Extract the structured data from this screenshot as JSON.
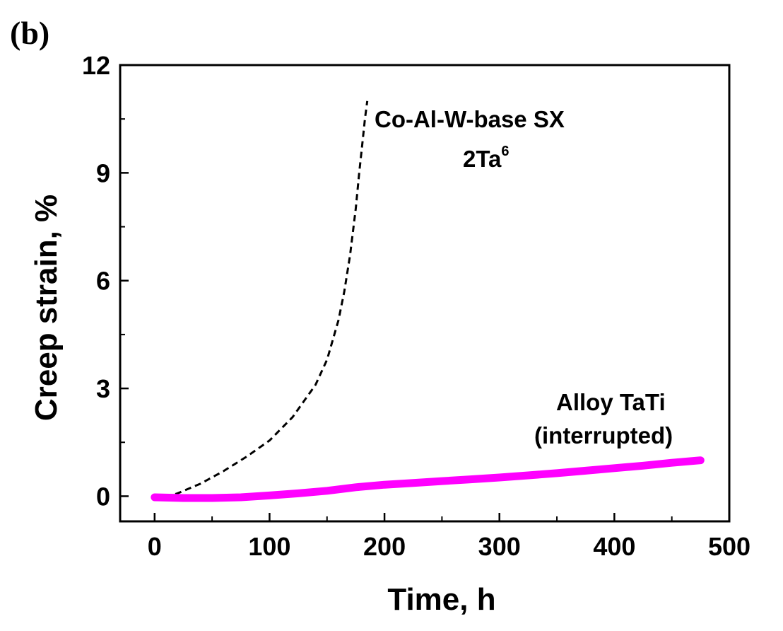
{
  "panel_label": "(b)",
  "chart_data": {
    "type": "line",
    "xlabel": "Time, h",
    "ylabel": "Creep strain, %",
    "xlim": [
      -30,
      500
    ],
    "ylim": [
      -0.7,
      12
    ],
    "x_ticks": [
      0,
      100,
      200,
      300,
      400,
      500
    ],
    "y_ticks": [
      0,
      3,
      6,
      9,
      12
    ],
    "grid": false,
    "series": [
      {
        "name": "Co-Al-W-base SX 2Ta",
        "reference_superscript": "6",
        "style": "dashed",
        "color": "#000000",
        "x": [
          0,
          10,
          20,
          40,
          60,
          80,
          100,
          120,
          140,
          150,
          160,
          165,
          170,
          175,
          178,
          181,
          183,
          185
        ],
        "y": [
          -0.05,
          -0.02,
          0.08,
          0.35,
          0.7,
          1.1,
          1.55,
          2.2,
          3.1,
          3.8,
          4.9,
          5.7,
          6.7,
          8.0,
          9.0,
          9.9,
          10.5,
          11.0
        ]
      },
      {
        "name": "Alloy TaTi (interrupted)",
        "style": "solid",
        "color": "#ff00ff",
        "x": [
          0,
          25,
          50,
          75,
          100,
          125,
          150,
          175,
          200,
          225,
          250,
          275,
          300,
          325,
          350,
          375,
          400,
          425,
          450,
          475
        ],
        "y": [
          -0.03,
          -0.05,
          -0.05,
          -0.03,
          0.02,
          0.08,
          0.15,
          0.25,
          0.32,
          0.37,
          0.42,
          0.47,
          0.52,
          0.58,
          0.64,
          0.71,
          0.78,
          0.85,
          0.93,
          1.0
        ]
      }
    ],
    "annotations": [
      {
        "text": "Co-Al-W-base SX",
        "series": 0
      },
      {
        "text": "2Ta",
        "sup": "6",
        "series": 0
      },
      {
        "text": "Alloy TaTi",
        "series": 1
      },
      {
        "text": "(interrupted)",
        "series": 1
      }
    ]
  }
}
